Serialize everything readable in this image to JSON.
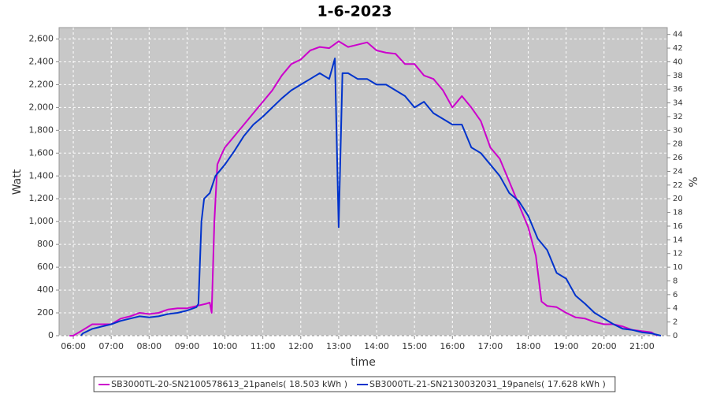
{
  "chart_data": {
    "type": "line",
    "title": "1-6-2023",
    "x_label": "time",
    "y_label": "Watt",
    "y2_label": "%",
    "xlim": [
      5.625,
      21.667
    ],
    "xticks": [
      {
        "value": 6,
        "label": "06:00"
      },
      {
        "value": 7,
        "label": "07:00"
      },
      {
        "value": 8,
        "label": "08:00"
      },
      {
        "value": 9,
        "label": "09:00"
      },
      {
        "value": 10,
        "label": "10:00"
      },
      {
        "value": 11,
        "label": "11:00"
      },
      {
        "value": 12,
        "label": "12:00"
      },
      {
        "value": 13,
        "label": "13:00"
      },
      {
        "value": 14,
        "label": "14:00"
      },
      {
        "value": 15,
        "label": "15:00"
      },
      {
        "value": 16,
        "label": "16:00"
      },
      {
        "value": 17,
        "label": "17:00"
      },
      {
        "value": 18,
        "label": "18:00"
      },
      {
        "value": 19,
        "label": "19:00"
      },
      {
        "value": 20,
        "label": "20:00"
      },
      {
        "value": 21,
        "label": "21:00"
      }
    ],
    "ylim": [
      0,
      2700
    ],
    "yticks": [
      0,
      200,
      400,
      600,
      800,
      {
        "value": 1000,
        "label": "1,000"
      },
      {
        "value": 1200,
        "label": "1,200"
      },
      {
        "value": 1400,
        "label": "1,400"
      },
      {
        "value": 1600,
        "label": "1,600"
      },
      {
        "value": 1800,
        "label": "1,800"
      },
      {
        "value": 2000,
        "label": "2,000"
      },
      {
        "value": 2200,
        "label": "2,200"
      },
      {
        "value": 2400,
        "label": "2,400"
      },
      {
        "value": 2600,
        "label": "2,600"
      }
    ],
    "y2lim": [
      0,
      45
    ],
    "y2ticks": [
      0,
      2,
      4,
      6,
      8,
      10,
      12,
      14,
      16,
      18,
      20,
      22,
      24,
      26,
      28,
      30,
      32,
      34,
      36,
      38,
      40,
      42,
      44
    ],
    "grid": true,
    "legend": "bottom",
    "background": "#c8c8c8",
    "series": [
      {
        "name": "SB3000TL-20-SN2100578613_21panels( 18.503 kWh )",
        "color": "#cc00cc",
        "x": [
          5.9,
          6,
          6.25,
          6.5,
          6.75,
          7,
          7.25,
          7.5,
          7.75,
          8,
          8.25,
          8.5,
          8.75,
          9,
          9.25,
          9.5,
          9.6,
          9.65,
          9.72,
          9.8,
          9.9,
          10,
          10.25,
          10.5,
          10.75,
          11,
          11.25,
          11.5,
          11.75,
          12,
          12.25,
          12.5,
          12.75,
          13,
          13.25,
          13.5,
          13.75,
          14,
          14.25,
          14.5,
          14.75,
          15,
          15.25,
          15.5,
          15.75,
          16,
          16.25,
          16.5,
          16.75,
          17,
          17.25,
          17.5,
          17.75,
          18,
          18.2,
          18.35,
          18.5,
          18.75,
          19,
          19.25,
          19.5,
          19.75,
          20,
          20.25,
          20.5,
          20.75,
          21,
          21.25,
          21.4
        ],
        "values": [
          0,
          0,
          50,
          100,
          100,
          100,
          150,
          170,
          200,
          190,
          200,
          230,
          240,
          240,
          260,
          280,
          290,
          200,
          1000,
          1500,
          1580,
          1650,
          1750,
          1850,
          1950,
          2050,
          2150,
          2280,
          2380,
          2420,
          2500,
          2530,
          2520,
          2580,
          2530,
          2550,
          2570,
          2500,
          2480,
          2470,
          2380,
          2380,
          2280,
          2250,
          2150,
          2000,
          2100,
          2000,
          1880,
          1650,
          1550,
          1350,
          1150,
          950,
          700,
          300,
          260,
          250,
          200,
          160,
          150,
          120,
          100,
          100,
          80,
          50,
          40,
          30,
          0
        ]
      },
      {
        "name": "SB3000TL-21-SN2130032031_19panels( 17.628 kWh )",
        "color": "#0033cc",
        "x": [
          6.2,
          6.25,
          6.5,
          6.75,
          7,
          7.25,
          7.5,
          7.75,
          8,
          8.25,
          8.5,
          8.75,
          9,
          9.25,
          9.3,
          9.38,
          9.45,
          9.6,
          9.75,
          10,
          10.25,
          10.5,
          10.75,
          11,
          11.25,
          11.5,
          11.75,
          12,
          12.25,
          12.5,
          12.75,
          12.9,
          13.0,
          13.1,
          13.25,
          13.5,
          13.75,
          14,
          14.25,
          14.5,
          14.75,
          15,
          15.25,
          15.5,
          15.75,
          16,
          16.25,
          16.5,
          16.75,
          17,
          17.25,
          17.5,
          17.75,
          18,
          18.25,
          18.5,
          18.75,
          19,
          19.25,
          19.5,
          19.75,
          20,
          20.25,
          20.5,
          20.75,
          21,
          21.25,
          21.5
        ],
        "values": [
          0,
          20,
          60,
          80,
          100,
          130,
          150,
          170,
          160,
          170,
          190,
          200,
          220,
          250,
          280,
          1000,
          1200,
          1250,
          1400,
          1500,
          1620,
          1750,
          1850,
          1920,
          2000,
          2080,
          2150,
          2200,
          2250,
          2300,
          2250,
          2430,
          950,
          2300,
          2300,
          2250,
          2250,
          2200,
          2200,
          2150,
          2100,
          2000,
          2050,
          1950,
          1900,
          1850,
          1850,
          1650,
          1600,
          1500,
          1400,
          1250,
          1180,
          1050,
          850,
          750,
          550,
          500,
          350,
          280,
          200,
          150,
          100,
          60,
          50,
          30,
          20,
          0
        ]
      }
    ]
  }
}
